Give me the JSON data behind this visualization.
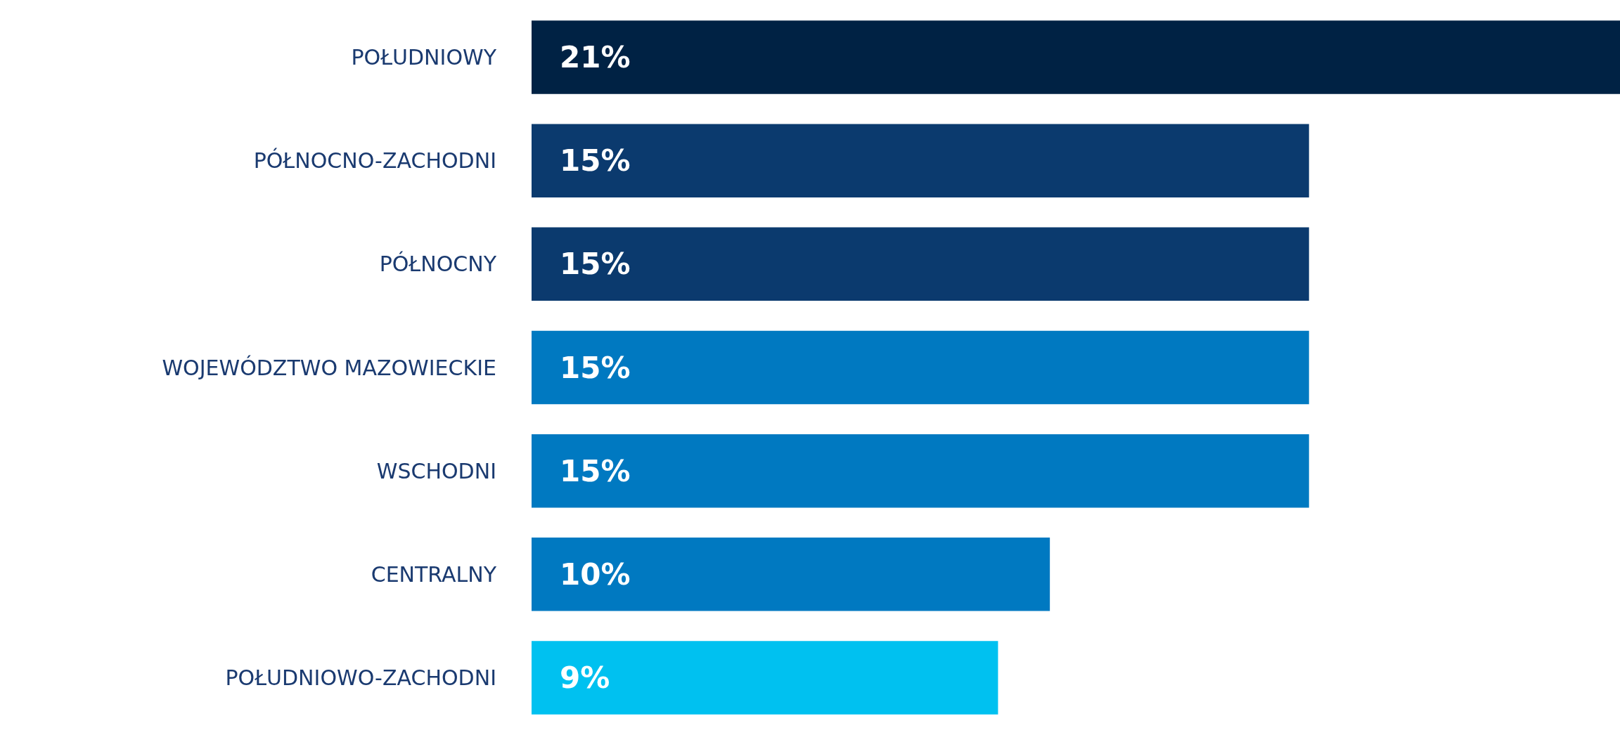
{
  "chart_data": {
    "type": "bar",
    "orientation": "horizontal",
    "categories": [
      "POŁUDNIOWY",
      "PÓŁNOCNO-ZACHODNI",
      "PÓŁNOCNY",
      "WOJEWÓDZTWO MAZOWIECKIE",
      "WSCHODNI",
      "CENTRALNY",
      "POŁUDNIOWO-ZACHODNI"
    ],
    "values": [
      21,
      15,
      15,
      15,
      15,
      10,
      9
    ],
    "value_labels": [
      "21%",
      "15%",
      "15%",
      "15%",
      "15%",
      "10%",
      "9%"
    ],
    "colors": [
      "#002244",
      "#0b3a6e",
      "#0b3a6e",
      "#0079c1",
      "#0079c1",
      "#0079c1",
      "#00c1f0"
    ]
  }
}
